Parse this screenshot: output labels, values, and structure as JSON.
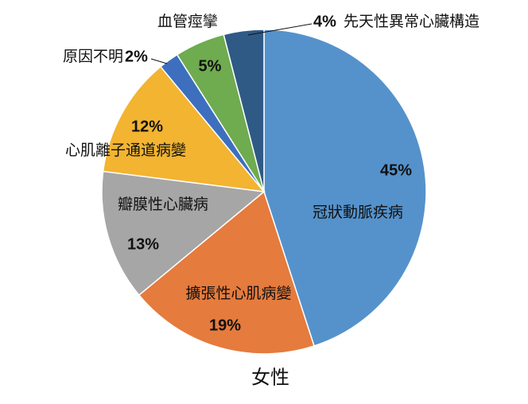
{
  "chart_data": {
    "type": "pie",
    "title": "女性",
    "categories": [
      "冠狀動脈疾病",
      "擴張性心肌病變",
      "瓣膜性心臟病",
      "心肌離子通道病變",
      "原因不明",
      "血管痙攣",
      "先天性異常心臟構造"
    ],
    "values": [
      45,
      19,
      13,
      12,
      2,
      5,
      4
    ],
    "value_labels": [
      "45%",
      "19%",
      "13%",
      "12%",
      "2%",
      "5%",
      "4%"
    ],
    "colors": [
      "#5592cb",
      "#e57b3d",
      "#a6a6a6",
      "#f2b431",
      "#3d6fbe",
      "#6fab4f",
      "#2f5a86"
    ]
  }
}
